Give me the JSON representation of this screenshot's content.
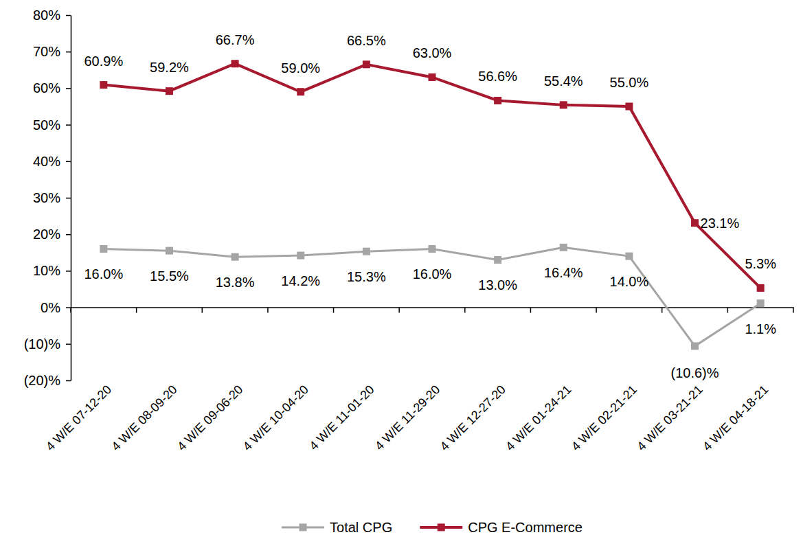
{
  "chart_data": {
    "type": "line",
    "categories": [
      "4 W/E 07-12-20",
      "4 W/E 08-09-20",
      "4 W/E 09-06-20",
      "4 W/E 10-04-20",
      "4 W/E 11-01-20",
      "4 W/E 11-29-20",
      "4 W/E 12-27-20",
      "4 W/E 01-24-21",
      "4 W/E 02-21-21",
      "4 W/E 03-21-21",
      "4 W/E 04-18-21"
    ],
    "series": [
      {
        "name": "Total CPG",
        "color": "#A5A5A5",
        "marker": "square",
        "values": [
          16.0,
          15.5,
          13.8,
          14.2,
          15.3,
          16.0,
          13.0,
          16.4,
          14.0,
          -10.6,
          1.1
        ],
        "value_labels": [
          "16.0%",
          "15.5%",
          "13.8%",
          "14.2%",
          "15.3%",
          "16.0%",
          "13.0%",
          "16.4%",
          "14.0%",
          "(10.6)%",
          "1.1%"
        ]
      },
      {
        "name": "CPG E-Commerce",
        "color": "#A6192E",
        "marker": "square",
        "values": [
          60.9,
          59.2,
          66.7,
          59.0,
          66.5,
          63.0,
          56.6,
          55.4,
          55.0,
          23.1,
          5.3
        ],
        "value_labels": [
          "60.9%",
          "59.2%",
          "66.7%",
          "59.0%",
          "66.5%",
          "63.0%",
          "56.6%",
          "55.4%",
          "55.0%",
          "23.1%",
          "5.3%"
        ]
      }
    ],
    "ylim": [
      -20,
      80
    ],
    "yticks": [
      {
        "value": -20,
        "label": "(20)%"
      },
      {
        "value": -10,
        "label": "(10)%"
      },
      {
        "value": 0,
        "label": "0%"
      },
      {
        "value": 10,
        "label": "10%"
      },
      {
        "value": 20,
        "label": "20%"
      },
      {
        "value": 30,
        "label": "30%"
      },
      {
        "value": 40,
        "label": "40%"
      },
      {
        "value": 50,
        "label": "50%"
      },
      {
        "value": 60,
        "label": "60%"
      },
      {
        "value": 70,
        "label": "70%"
      },
      {
        "value": 80,
        "label": "80%"
      }
    ],
    "grid": false,
    "legend": "bottom",
    "data_labels": true
  }
}
